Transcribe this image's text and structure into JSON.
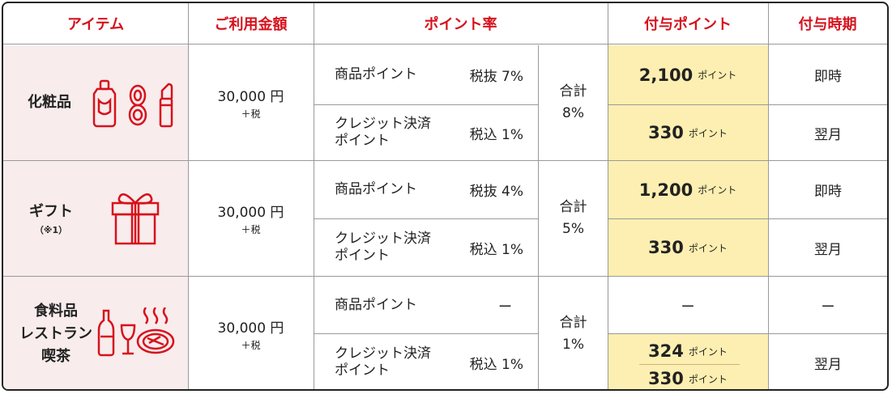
{
  "header": {
    "item": "アイテム",
    "amount": "ご利用金額",
    "rate": "ポイント率",
    "granted": "付与ポイント",
    "timing": "付与時期"
  },
  "rows": [
    {
      "item": "化粧品",
      "icon": "cosmetics-icon",
      "amount": "30,000 円",
      "tax": "＋税",
      "product_label": "商品ポイント",
      "product_rate": "税抜  7%",
      "credit_label_1": "クレジット決済",
      "credit_label_2": "ポイント",
      "credit_rate": "税込 1%",
      "total_label": "合計",
      "total_value": "8%",
      "product_points": "2,100",
      "credit_points": "330",
      "unit": "ポイント",
      "product_timing": "即時",
      "credit_timing": "翌月"
    },
    {
      "item": "ギフト",
      "note": "（※1）",
      "icon": "gift-icon",
      "amount": "30,000 円",
      "tax": "＋税",
      "product_label": "商品ポイント",
      "product_rate": "税抜  4%",
      "credit_label_1": "クレジット決済",
      "credit_label_2": "ポイント",
      "credit_rate": "税込 1%",
      "total_label": "合計",
      "total_value": "5%",
      "product_points": "1,200",
      "credit_points": "330",
      "unit": "ポイント",
      "product_timing": "即時",
      "credit_timing": "翌月"
    },
    {
      "item_1": "食料品",
      "item_2": "レストラン",
      "item_3": "喫茶",
      "icon": "food-restaurant-icon",
      "amount": "30,000 円",
      "tax": "＋税",
      "product_label": "商品ポイント",
      "product_rate": "ー",
      "credit_label_1": "クレジット決済",
      "credit_label_2": "ポイント",
      "credit_rate": "税込 1%",
      "total_label": "合計",
      "total_value": "1%",
      "product_points": "ー",
      "credit_points_1": "324",
      "credit_points_2": "330",
      "unit": "ポイント",
      "product_timing": "ー",
      "credit_timing": "翌月"
    }
  ],
  "colors": {
    "accent": "#d6121d",
    "item_bg": "#f8ecec",
    "points_bg": "#fdefb1"
  }
}
